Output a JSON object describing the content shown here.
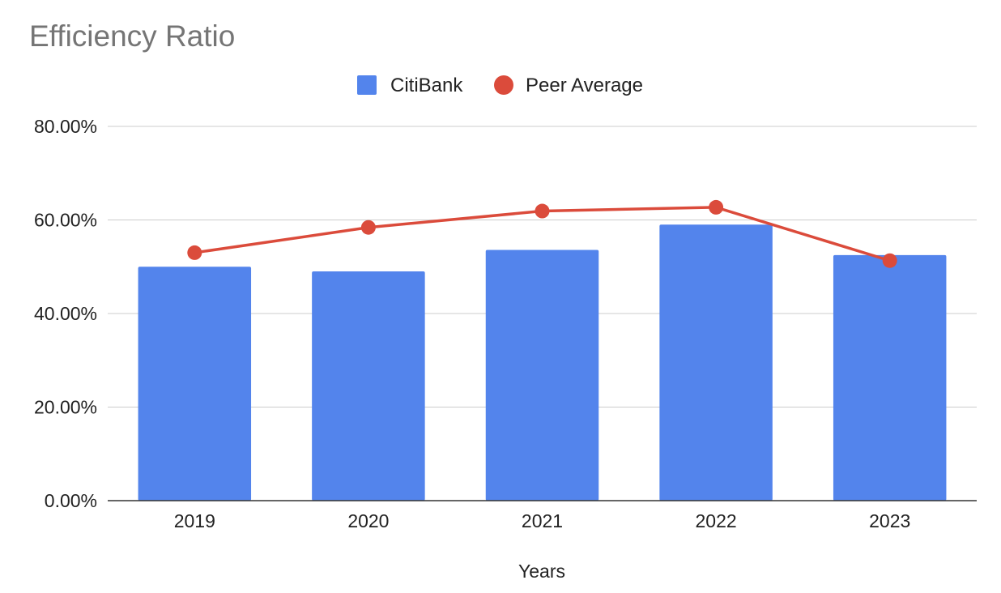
{
  "chart_data": {
    "type": "bar",
    "title": "Efficiency Ratio",
    "xlabel": "Years",
    "ylabel": "",
    "categories": [
      "2019",
      "2020",
      "2021",
      "2022",
      "2023"
    ],
    "series": [
      {
        "name": "CitiBank",
        "type": "bar",
        "color": "#5384ec",
        "values": [
          0.5,
          0.49,
          0.536,
          0.59,
          0.525
        ]
      },
      {
        "name": "Peer Average",
        "type": "line",
        "color": "#db4b3b",
        "values": [
          0.53,
          0.584,
          0.619,
          0.627,
          0.513
        ]
      }
    ],
    "ylim": [
      0,
      0.8
    ],
    "yticks": [
      0,
      0.2,
      0.4,
      0.6,
      0.8
    ],
    "ytick_labels": [
      "0.00%",
      "20.00%",
      "40.00%",
      "60.00%",
      "80.00%"
    ],
    "grid": true,
    "legend_position": "top"
  }
}
